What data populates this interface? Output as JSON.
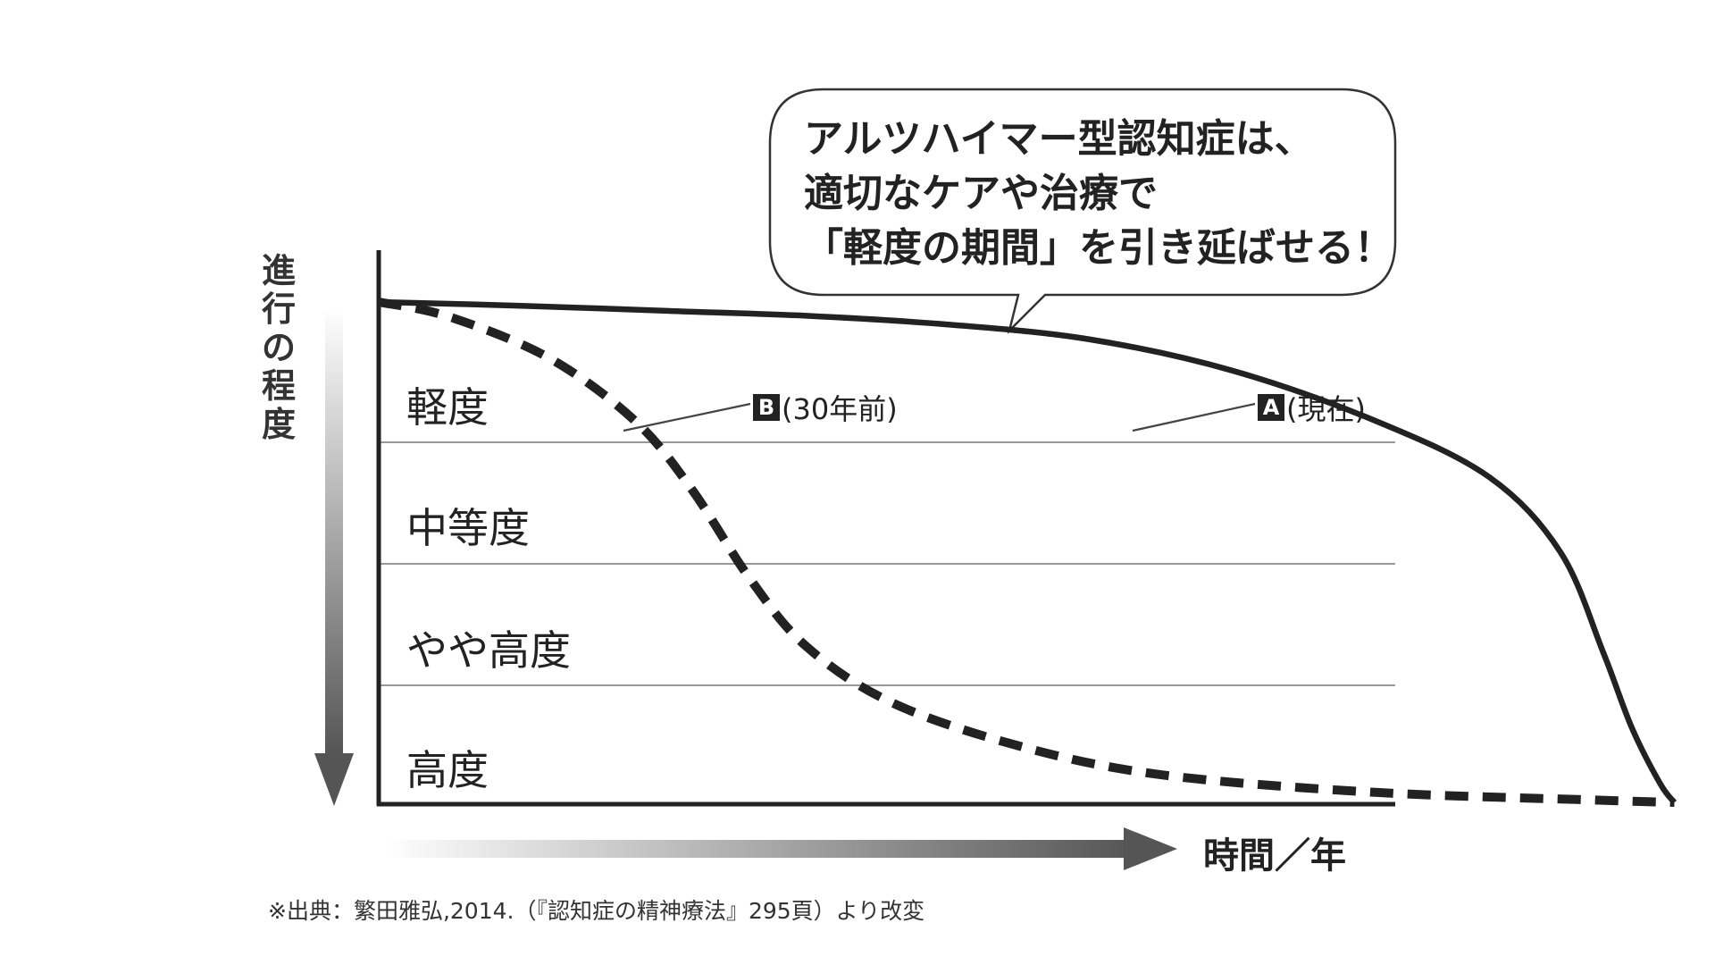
{
  "callout": {
    "lines": [
      "アルツハイマー型認知症は、",
      "適切なケアや治療で",
      "「軽度の期間」を引き延ばせる！"
    ]
  },
  "axes": {
    "ylabel": "進行の程度",
    "xlabel": "時間／年"
  },
  "bands": [
    "軽度",
    "中等度",
    "やや高度",
    "高度"
  ],
  "series_labels": {
    "A": {
      "letter": "A",
      "text": "(現在)"
    },
    "B": {
      "letter": "B",
      "text": "(30年前)"
    }
  },
  "source": "※出典：繁田雅弘,2014.（『認知症の精神療法』295頁）より改変",
  "colors": {
    "line": "#222222",
    "grid": "#999999",
    "arrow": "#555555",
    "background": "#ffffff"
  },
  "chart_data": {
    "type": "line",
    "xlabel": "時間／年",
    "ylabel": "進行の程度",
    "y_categories": [
      "軽度",
      "中等度",
      "やや高度",
      "高度"
    ],
    "x_ticks": "none",
    "grid": "horizontal band separators",
    "series": [
      {
        "name": "A(現在)",
        "style": "solid",
        "points": [
          [
            0,
            0.0
          ],
          [
            0.1,
            0.03
          ],
          [
            0.2,
            0.07
          ],
          [
            0.3,
            0.11
          ],
          [
            0.4,
            0.18
          ],
          [
            0.5,
            0.3
          ],
          [
            0.6,
            0.55
          ],
          [
            0.7,
            0.95
          ],
          [
            0.78,
            1.4
          ],
          [
            0.83,
            2.0
          ],
          [
            0.86,
            2.8
          ],
          [
            0.88,
            3.4
          ],
          [
            0.9,
            3.85
          ],
          [
            0.91,
            4.0
          ]
        ]
      },
      {
        "name": "B(30年前)",
        "style": "dashed",
        "points": [
          [
            0,
            0.0
          ],
          [
            0.05,
            0.12
          ],
          [
            0.12,
            0.45
          ],
          [
            0.18,
            0.95
          ],
          [
            0.22,
            1.5
          ],
          [
            0.26,
            2.2
          ],
          [
            0.3,
            2.75
          ],
          [
            0.36,
            3.2
          ],
          [
            0.45,
            3.55
          ],
          [
            0.55,
            3.78
          ],
          [
            0.7,
            3.92
          ],
          [
            0.85,
            3.98
          ],
          [
            0.91,
            4.0
          ]
        ]
      }
    ]
  }
}
